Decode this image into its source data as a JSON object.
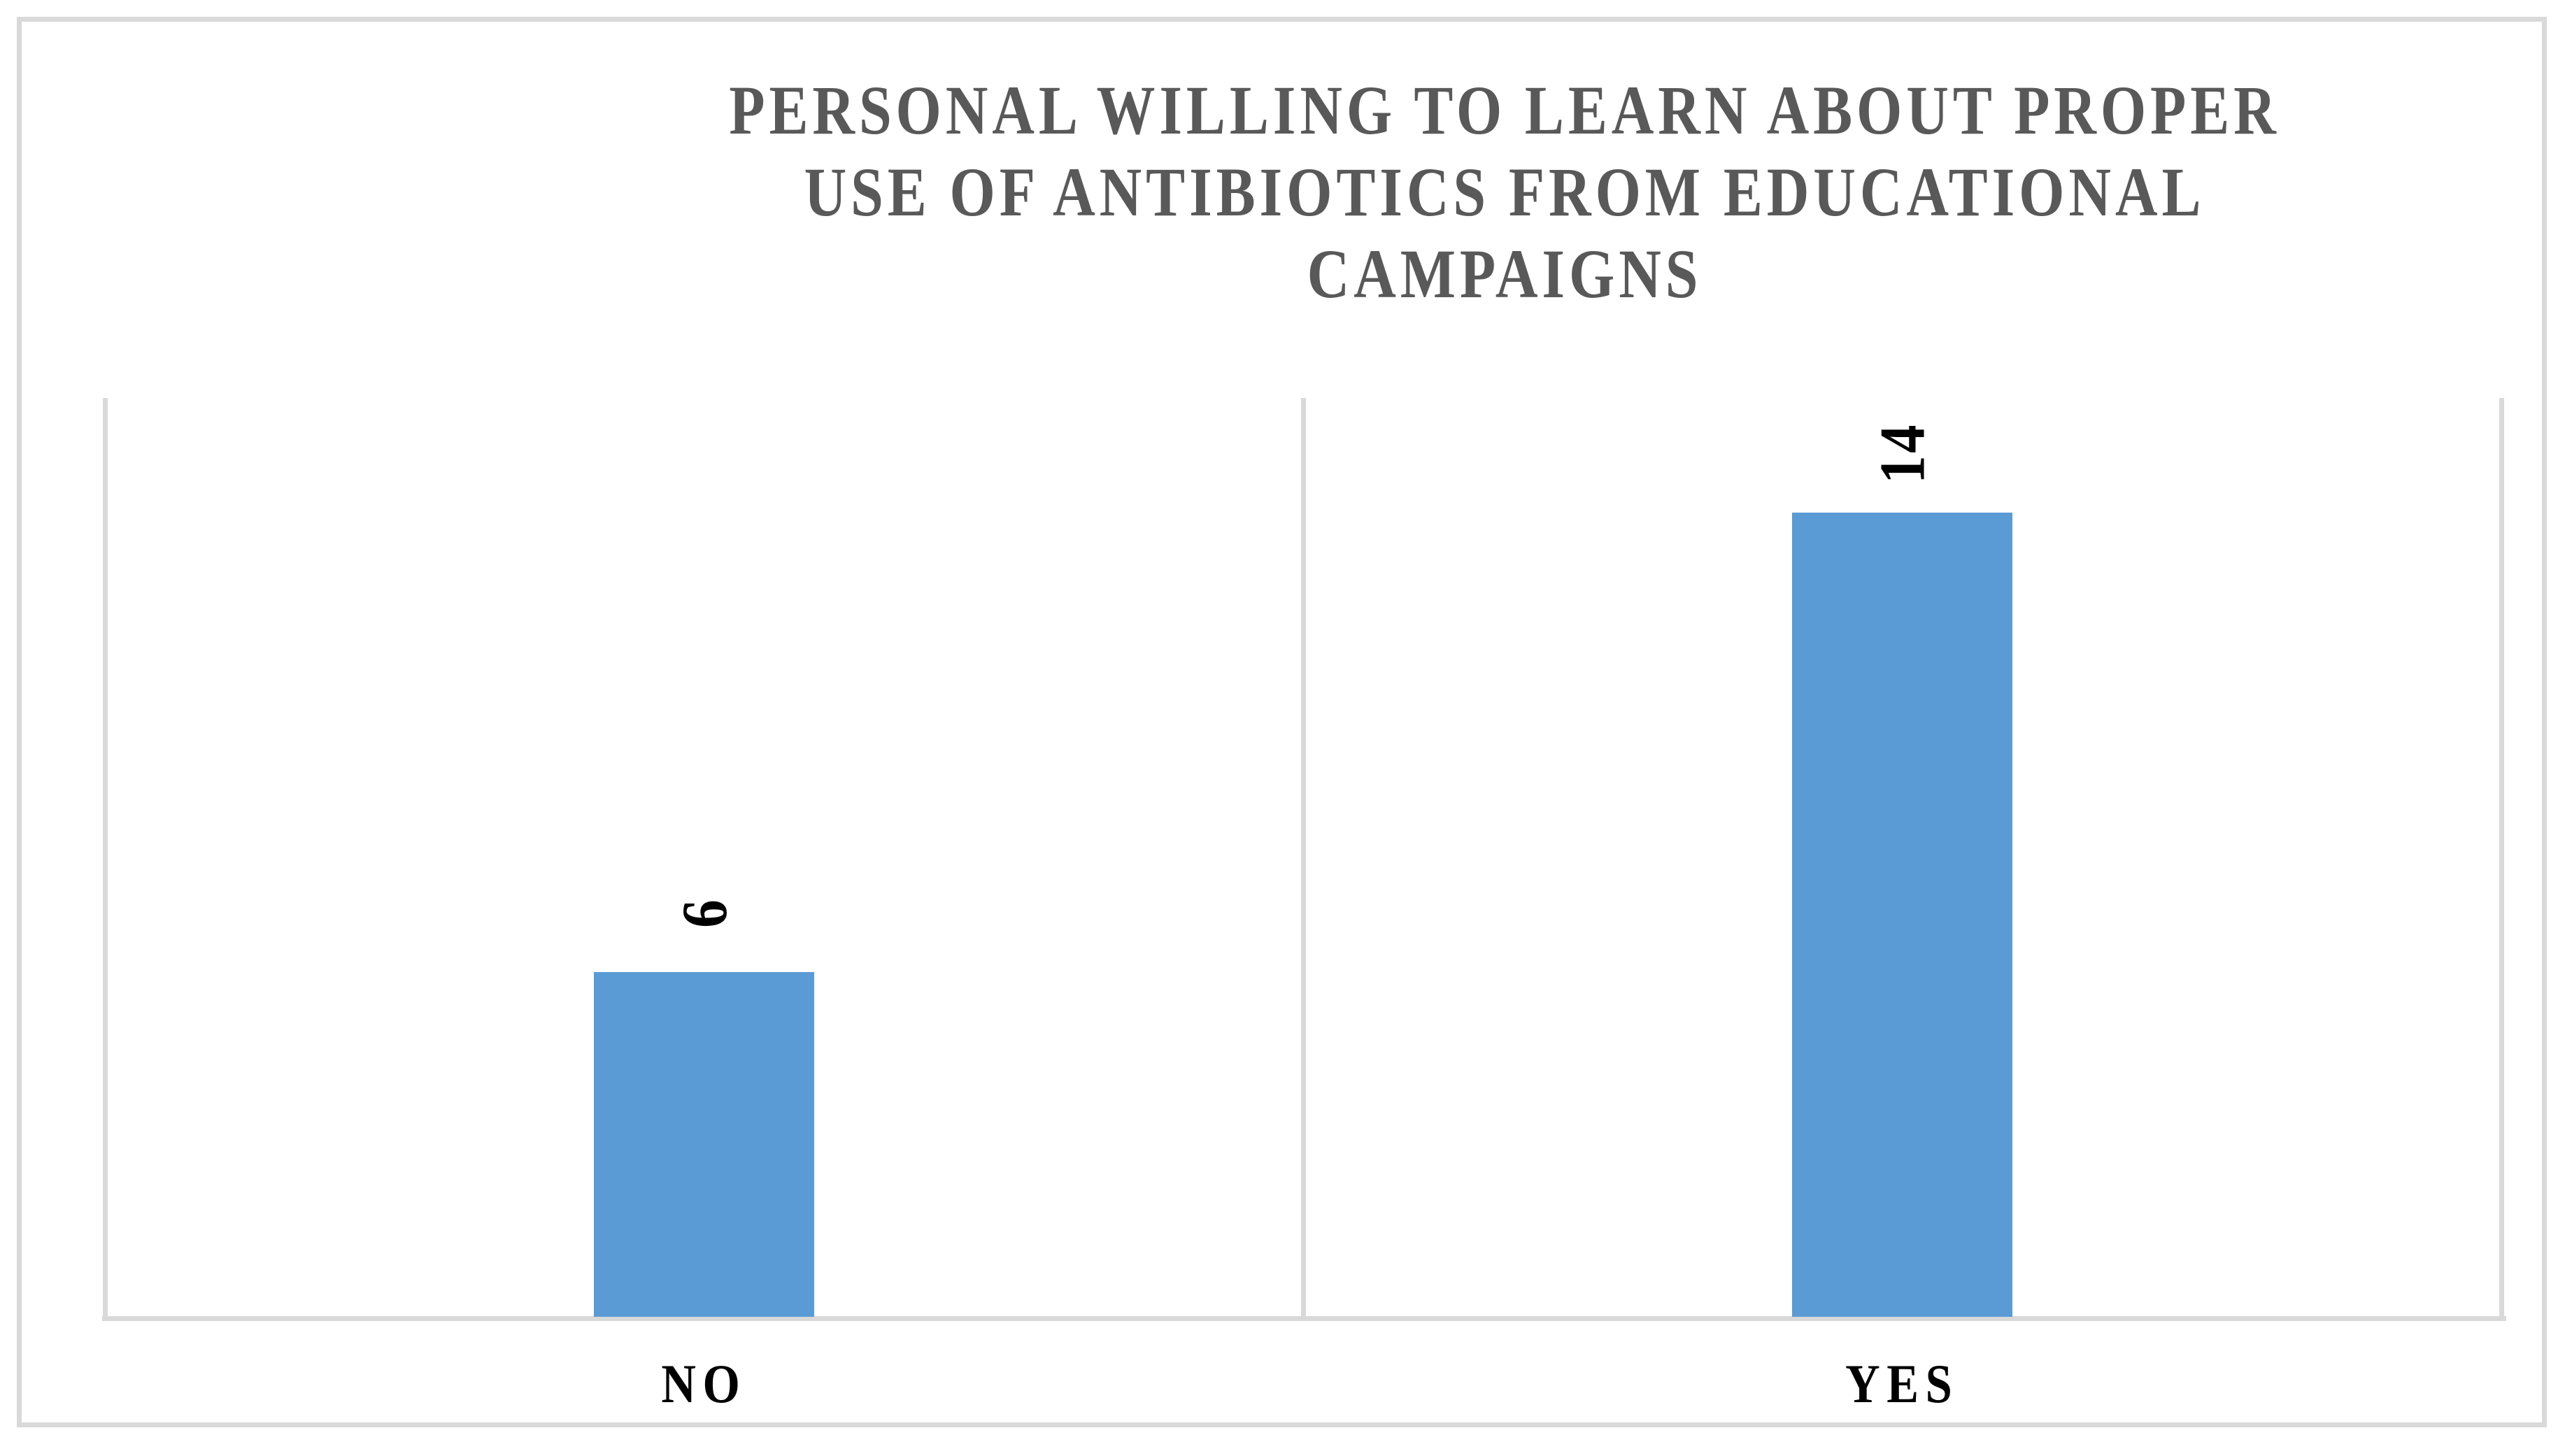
{
  "chart_data": {
    "type": "bar",
    "title": "PERSONAL WILLING TO LEARN ABOUT PROPER USE OF ANTIBIOTICS FROM EDUCATIONAL CAMPAIGNS",
    "title_lines": [
      "PERSONAL WILLING TO LEARN ABOUT PROPER",
      "USE OF ANTIBIOTICS FROM EDUCATIONAL",
      "CAMPAIGNS"
    ],
    "categories": [
      "NO",
      "YES"
    ],
    "values": [
      6,
      14
    ],
    "xlabel": "",
    "ylabel": "",
    "ylim": [
      0,
      16
    ],
    "legend_position": "none",
    "grid": "vertical category boundary gridlines only",
    "data_label_rotation_degrees": -90,
    "colors": {
      "bar": "#5b9bd5",
      "gridline": "#d9d9d9",
      "chart_border": "#d9d9d9",
      "title_text": "#595959",
      "label_text": "#000000",
      "background": "#ffffff"
    }
  }
}
